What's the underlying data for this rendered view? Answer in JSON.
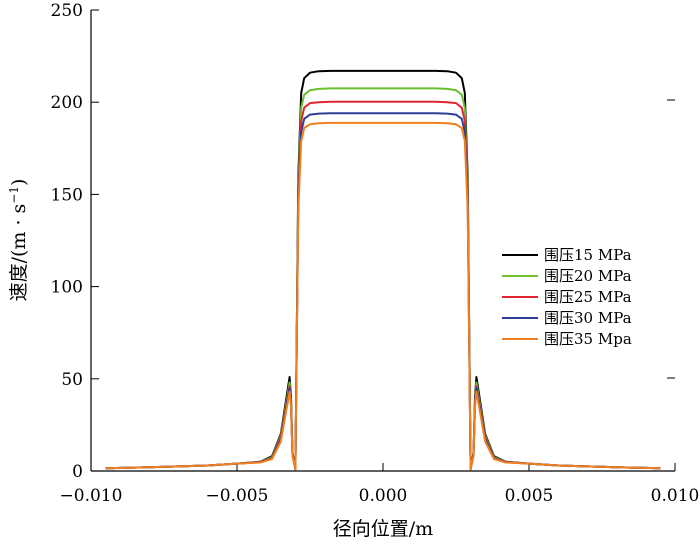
{
  "chart_data": {
    "type": "line",
    "title": "",
    "xlabel": "径向位置/m",
    "ylabel": "速度/(m · s",
    "ylabel_sup": "−1",
    "ylabel_end": ")",
    "xlim": [
      -0.01,
      0.01
    ],
    "ylim": [
      0,
      250
    ],
    "xticks": [
      -0.01,
      -0.005,
      0.0,
      0.005,
      0.01
    ],
    "xtick_labels": [
      "−0.010",
      "−0.005",
      "0.000",
      "0.005",
      "0.010"
    ],
    "yticks": [
      0,
      50,
      100,
      150,
      200,
      250
    ],
    "ytick_labels": [
      "0",
      "50",
      "100",
      "150",
      "200",
      "250"
    ],
    "grid": false,
    "legend_position": "right",
    "x": [
      -0.0095,
      -0.008,
      -0.006,
      -0.005,
      -0.0042,
      -0.0038,
      -0.0035,
      -0.0032,
      -0.00315,
      -0.0031,
      -0.003,
      -0.0029,
      -0.0028,
      -0.0027,
      -0.0025,
      -0.0022,
      -0.0018,
      -0.0012,
      -0.0005,
      0.0,
      0.0005,
      0.0012,
      0.0018,
      0.0022,
      0.0025,
      0.0027,
      0.0028,
      0.0029,
      0.003,
      0.0031,
      0.00315,
      0.0032,
      0.0035,
      0.0038,
      0.0042,
      0.005,
      0.006,
      0.008,
      0.0095
    ],
    "series": [
      {
        "name": "围压15 MPa",
        "color": "#000000",
        "values": [
          1.5,
          2,
          3,
          4,
          5,
          8,
          20,
          51,
          40,
          10,
          1,
          160,
          205,
          213,
          216,
          216.8,
          217,
          217,
          217,
          217,
          217,
          217,
          217,
          216.8,
          216,
          213,
          205,
          160,
          1,
          10,
          40,
          51,
          20,
          8,
          5,
          4,
          3,
          2,
          1.5
        ]
      },
      {
        "name": "围压20 MPa",
        "color": "#6cbf2f",
        "values": [
          1.5,
          2,
          3,
          4,
          5,
          7.5,
          19,
          48,
          38,
          9,
          1,
          155,
          197,
          204,
          206.5,
          207.2,
          207.5,
          207.5,
          207.5,
          207.5,
          207.5,
          207.5,
          207.5,
          207.2,
          206.5,
          204,
          197,
          155,
          1,
          9,
          38,
          48,
          19,
          7.5,
          5,
          4,
          3,
          2,
          1.5
        ]
      },
      {
        "name": "围压25 MPa",
        "color": "#e0262e",
        "values": [
          1.5,
          2,
          3,
          4,
          5,
          7,
          18,
          46,
          37,
          9,
          1,
          150,
          190,
          197,
          199.5,
          200,
          200.2,
          200.2,
          200.2,
          200.2,
          200.2,
          200.2,
          200.2,
          200,
          199.5,
          197,
          190,
          150,
          1,
          9,
          37,
          46,
          18,
          7,
          5,
          4,
          3,
          2,
          1.5
        ]
      },
      {
        "name": "围压30 MPa",
        "color": "#2e3d95",
        "values": [
          1.5,
          2,
          3,
          4,
          4.8,
          6.8,
          17,
          45,
          36,
          8.5,
          1,
          146,
          184,
          191,
          193.3,
          193.8,
          194,
          194,
          194,
          194,
          194,
          194,
          194,
          193.8,
          193.3,
          191,
          184,
          146,
          1,
          8.5,
          36,
          45,
          17,
          6.8,
          4.8,
          4,
          3,
          2,
          1.5
        ]
      },
      {
        "name": "围压35 Mpa",
        "color": "#f07f1e",
        "values": [
          1.5,
          2,
          3,
          4,
          4.6,
          6.5,
          16,
          43,
          35,
          8,
          1,
          142,
          179,
          186,
          188,
          188.6,
          188.8,
          188.8,
          188.8,
          188.8,
          188.8,
          188.8,
          188.8,
          188.6,
          188,
          186,
          179,
          142,
          1,
          8,
          35,
          43,
          16,
          6.5,
          4.6,
          4,
          3,
          2,
          1.5
        ]
      }
    ]
  }
}
